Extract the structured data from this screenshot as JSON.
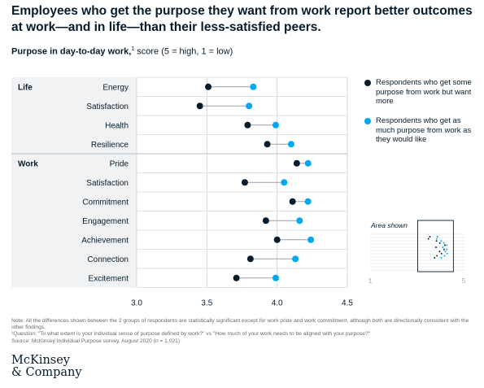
{
  "title": "Employees who get the purpose they want from work report better outcomes at work—and in life—than their less-satisfied peers.",
  "subtitle": {
    "bold": "Purpose in day-to-day work,",
    "sup": "1",
    "rest": " score (5 = high, 1 = low)"
  },
  "legend": [
    {
      "label": "Respondents who get some purpose from work but want more",
      "color": "#051c2c"
    },
    {
      "label": "Respondents who get as much purpose from work as they would like",
      "color": "#00a9f4"
    }
  ],
  "inset": {
    "label": "Area shown",
    "min_tick": "1",
    "max_tick": "5"
  },
  "chart_data": {
    "type": "dot",
    "xlim": [
      3.0,
      4.5
    ],
    "xticks": [
      "3.0",
      "3.5",
      "4.0",
      "4.5"
    ],
    "groups": [
      {
        "name": "Life",
        "categories": [
          "Energy",
          "Satisfaction",
          "Health",
          "Resilience"
        ]
      },
      {
        "name": "Work",
        "categories": [
          "Pride",
          "Satisfaction",
          "Commitment",
          "Engagement",
          "Achievement",
          "Connection",
          "Excitement"
        ]
      }
    ],
    "categories": [
      "Energy",
      "Satisfaction",
      "Health",
      "Resilience",
      "Pride",
      "Satisfaction",
      "Commitment",
      "Engagement",
      "Achievement",
      "Connection",
      "Excitement"
    ],
    "series": [
      {
        "name": "Respondents who get some purpose from work but want more",
        "color": "#051c2c",
        "values": [
          3.51,
          3.45,
          3.79,
          3.93,
          4.14,
          3.77,
          4.11,
          3.92,
          4.0,
          3.81,
          3.71
        ]
      },
      {
        "name": "Respondents who get as much purpose from work as they would like",
        "color": "#00a9f4",
        "values": [
          3.83,
          3.8,
          3.99,
          4.1,
          4.22,
          4.05,
          4.22,
          4.16,
          4.24,
          4.13,
          3.99
        ]
      }
    ]
  },
  "notes": {
    "note": "Note: All the differences shown between the 2 groups of respondents are statistically significant except for work pride and work commitment, although both are directionally consistent with the other findings.",
    "footnote": "¹Question: \"To what extent is your individual sense of purpose defined by work?\" vs \"How much of your work needs to be aligned with your purpose?\"",
    "source": "Source: McKinsey Individual Purpose survey, August 2020 (n = 1,021)"
  },
  "logo": {
    "line1": "McKinsey",
    "line2": "& Company"
  }
}
